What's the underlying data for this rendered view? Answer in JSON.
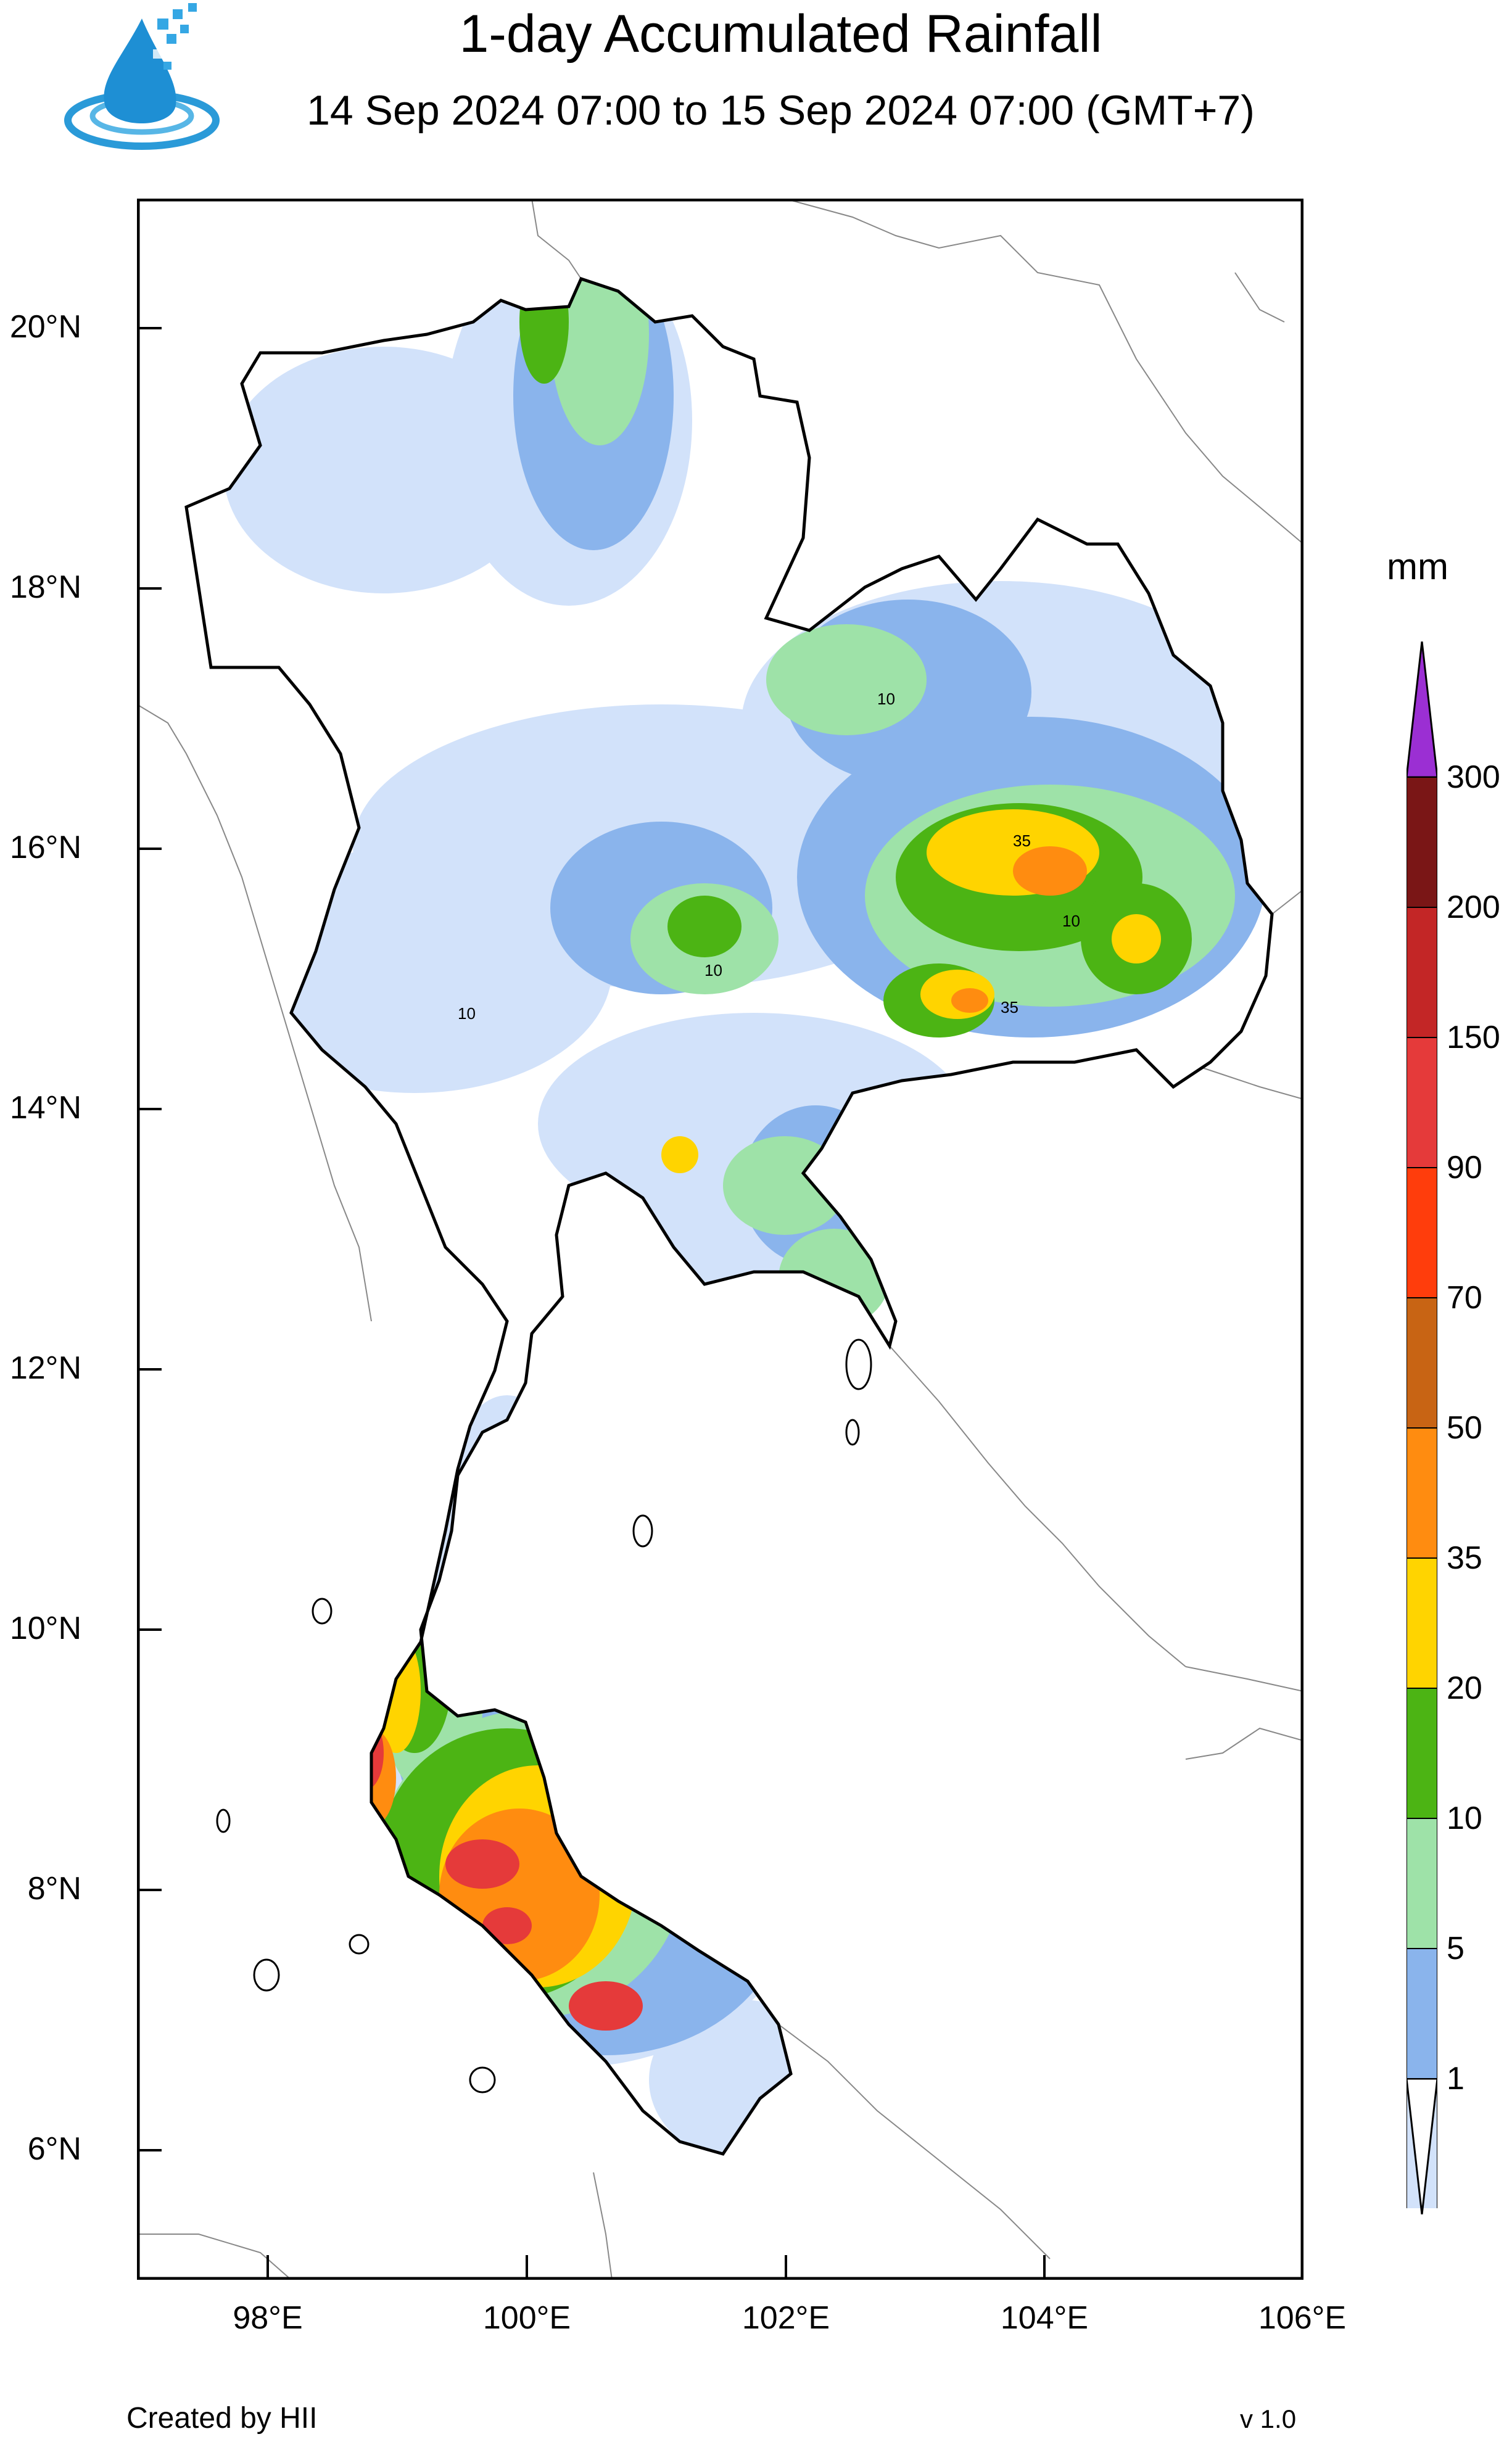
{
  "header": {
    "title": "1-day Accumulated Rainfall",
    "subtitle": "14 Sep 2024 07:00 to 15 Sep 2024 07:00 (GMT+7)",
    "logo_icon": "water-drop-logo-icon"
  },
  "map": {
    "lat_labels": [
      "20°N",
      "18°N",
      "16°N",
      "14°N",
      "12°N",
      "10°N",
      "8°N",
      "6°N"
    ],
    "lon_labels": [
      "98°E",
      "100°E",
      "102°E",
      "104°E",
      "106°E"
    ],
    "contour_labels": [
      "10",
      "35"
    ],
    "background": "#ffffff",
    "border_color": "#000000"
  },
  "colorbar": {
    "unit": "mm",
    "levels": [
      "300",
      "200",
      "150",
      "90",
      "70",
      "50",
      "35",
      "20",
      "10",
      "5",
      "1"
    ],
    "colors": [
      "#9b2fd3",
      "#7a1616",
      "#c32626",
      "#e53a3a",
      "#ff3d0c",
      "#c86414",
      "#ff8c10",
      "#ffd400",
      "#4cb414",
      "#9ee2a8",
      "#8ab4ec",
      "#d2e2fa",
      "#ffffff"
    ]
  },
  "footer": {
    "credit": "Created by HII",
    "version": "v 1.0"
  }
}
